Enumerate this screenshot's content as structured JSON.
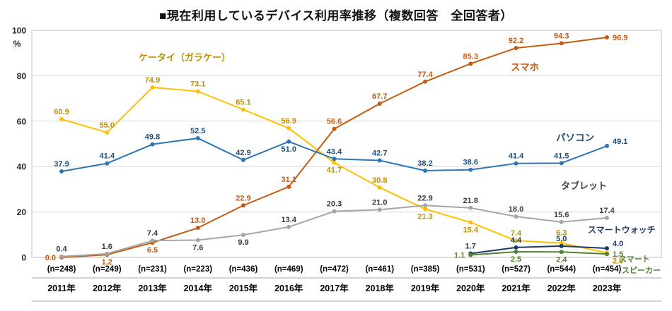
{
  "chart_data": {
    "type": "line",
    "title": "■現在利用しているデバイス利用率推移（複数回答　全回答者）",
    "ylabel": "%",
    "ylim": [
      0,
      100
    ],
    "yticks": [
      0,
      20,
      40,
      60,
      80,
      100
    ],
    "grid": "horizontal",
    "legend_position": "inline-annotations",
    "categories": [
      "2011年",
      "2012年",
      "2013年",
      "2014年",
      "2015年",
      "2016年",
      "2017年",
      "2018年",
      "2019年",
      "2020年",
      "2021年",
      "2022年",
      "2023年"
    ],
    "sample_sizes": [
      "(n=248)",
      "(n=249)",
      "(n=231)",
      "(n=223)",
      "(n=436)",
      "(n=469)",
      "(n=472)",
      "(n=461)",
      "(n=385)",
      "(n=531)",
      "(n=527)",
      "(n=544)",
      "(n=454)"
    ],
    "series": [
      {
        "key": "feature-phone",
        "name": "ケータイ（ガラケー）",
        "color": "#FFC000",
        "label_color": "#BF8F00",
        "values": [
          60.9,
          55.0,
          74.9,
          73.1,
          65.1,
          56.9,
          41.7,
          30.8,
          21.3,
          15.4,
          7.4,
          6.3,
          2.0
        ],
        "label_pos": [
          "a",
          "a",
          "a",
          "a",
          "a",
          "a",
          "b",
          "a",
          "b",
          "b",
          "a",
          "A",
          "rb"
        ]
      },
      {
        "key": "smartphone",
        "name": "スマホ",
        "color": "#C55A11",
        "label_color": "#C55A11",
        "values": [
          0.0,
          1.2,
          6.5,
          13.0,
          22.9,
          31.1,
          56.6,
          67.7,
          77.4,
          85.3,
          92.2,
          94.3,
          96.9
        ],
        "label_pos": [
          "l",
          "b",
          "b",
          "a",
          "a",
          "a",
          "a",
          "a",
          "a",
          "a",
          "a",
          "a",
          "r"
        ]
      },
      {
        "key": "pc",
        "name": "パソコン",
        "color": "#2E75B6",
        "label_color": "#1F4E79",
        "values": [
          37.9,
          41.4,
          49.8,
          52.5,
          42.9,
          51.0,
          43.4,
          42.7,
          38.2,
          38.6,
          41.4,
          41.5,
          49.1
        ],
        "label_pos": [
          "a",
          "a",
          "a",
          "a",
          "a",
          "b",
          "a",
          "a",
          "a",
          "a",
          "a",
          "a",
          "ra"
        ]
      },
      {
        "key": "tablet",
        "name": "タブレット",
        "color": "#A6A6A6",
        "label_color": "#3B3B3B",
        "values": [
          0.4,
          1.6,
          7.4,
          7.6,
          9.9,
          13.4,
          20.3,
          21.0,
          22.9,
          21.8,
          18.0,
          15.6,
          17.4
        ],
        "label_pos": [
          "a",
          "a",
          "a",
          "b",
          "b",
          "a",
          "a",
          "a",
          "a",
          "a",
          "a",
          "a",
          "a"
        ]
      },
      {
        "key": "smartwatch",
        "name": "スマートウォッチ",
        "color": "#203864",
        "label_color": "#203864",
        "values": [
          null,
          null,
          null,
          null,
          null,
          null,
          null,
          null,
          null,
          1.7,
          4.4,
          5.0,
          4.0
        ],
        "label_pos": [
          null,
          null,
          null,
          null,
          null,
          null,
          null,
          null,
          null,
          "a",
          "a",
          "a",
          "ra"
        ]
      },
      {
        "key": "smart-speaker",
        "name": "スマートスピーカー",
        "color": "#548235",
        "label_color": "#548235",
        "values": [
          null,
          null,
          null,
          null,
          null,
          null,
          null,
          null,
          null,
          1.1,
          2.5,
          2.4,
          1.5
        ],
        "label_pos": [
          null,
          null,
          null,
          null,
          null,
          null,
          null,
          null,
          null,
          "l",
          "b",
          "b",
          "r"
        ]
      }
    ]
  }
}
